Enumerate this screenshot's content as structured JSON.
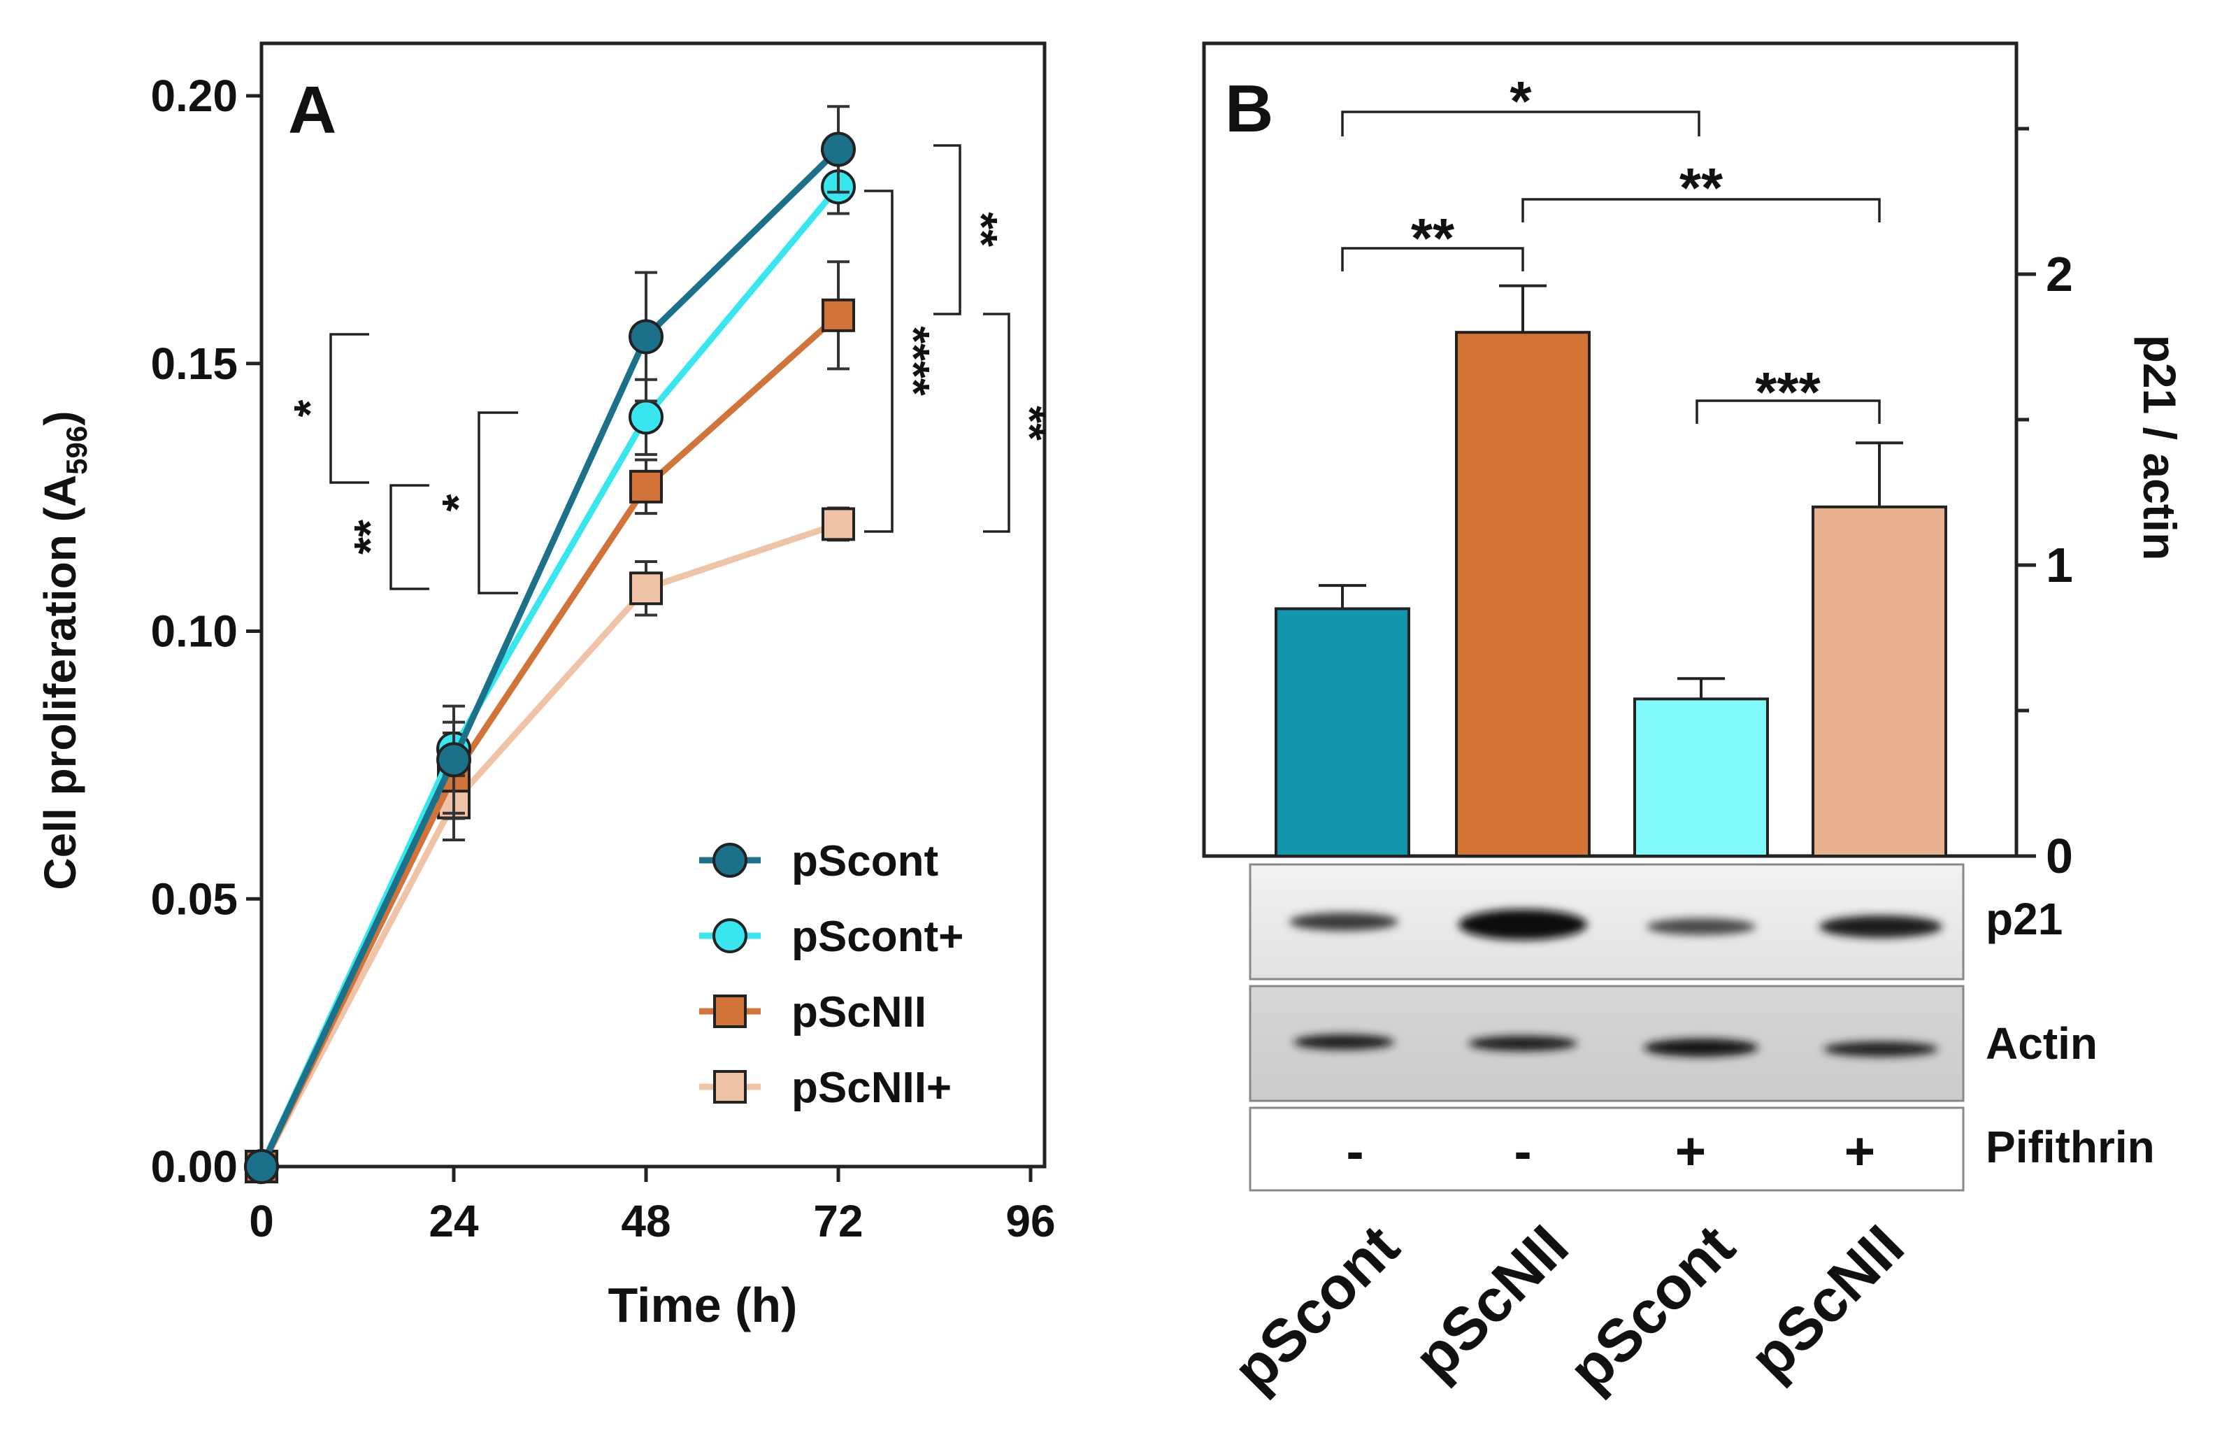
{
  "chart_data": [
    {
      "type": "line",
      "panel_label": "A",
      "xlabel": "Time (h)",
      "ylabel_main": "Cell proliferation (A",
      "ylabel_sub": "596",
      "ylabel_end": ")",
      "x_ticks": [
        "0",
        "24",
        "48",
        "72",
        "96"
      ],
      "y_ticks": [
        "0.00",
        "0.05",
        "0.10",
        "0.15",
        "0.20"
      ],
      "xlim": [
        0,
        96
      ],
      "ylim": [
        0,
        0.21
      ],
      "x": [
        0,
        24,
        48,
        72
      ],
      "series": [
        {
          "name": "pScont",
          "marker": "circle",
          "color": "#1a7189",
          "values": [
            0.0,
            0.076,
            0.155,
            0.19
          ],
          "errors": [
            0,
            0.01,
            0.012,
            0.008
          ]
        },
        {
          "name": "pScont+",
          "marker": "circle",
          "color": "#38e6ef",
          "values": [
            0.0,
            0.078,
            0.14,
            0.183
          ],
          "errors": [
            0,
            0.005,
            0.007,
            0.005
          ]
        },
        {
          "name": "pScNII",
          "marker": "square",
          "color": "#d2733a",
          "values": [
            0.0,
            0.073,
            0.127,
            0.159
          ],
          "errors": [
            0,
            0.008,
            0.005,
            0.01
          ]
        },
        {
          "name": "pScNII+",
          "marker": "square",
          "color": "#f0c2a6",
          "values": [
            0.0,
            0.068,
            0.108,
            0.12
          ],
          "errors": [
            0,
            0.007,
            0.005,
            0.003
          ]
        }
      ],
      "significance": [
        "*",
        "**",
        "*",
        "**",
        "****",
        "**"
      ]
    },
    {
      "type": "bar",
      "panel_label": "B",
      "ylabel": "p21 / actin",
      "y_ticks": [
        "0",
        "1",
        "2"
      ],
      "ylim": [
        0,
        2.6
      ],
      "categories": [
        "pScont",
        "pScNII",
        "pScont",
        "pScNII"
      ],
      "values": [
        0.85,
        1.8,
        0.54,
        1.2
      ],
      "errors": [
        0.08,
        0.16,
        0.07,
        0.22
      ],
      "colors": [
        "#1496ae",
        "#d37434",
        "#80f9fb",
        "#e9b190"
      ],
      "significance": [
        "*",
        "**",
        "**",
        "***"
      ],
      "blot_labels": [
        "p21",
        "Actin",
        "Pifithrin"
      ],
      "pifithrin": [
        "-",
        "-",
        "+",
        "+"
      ]
    }
  ]
}
